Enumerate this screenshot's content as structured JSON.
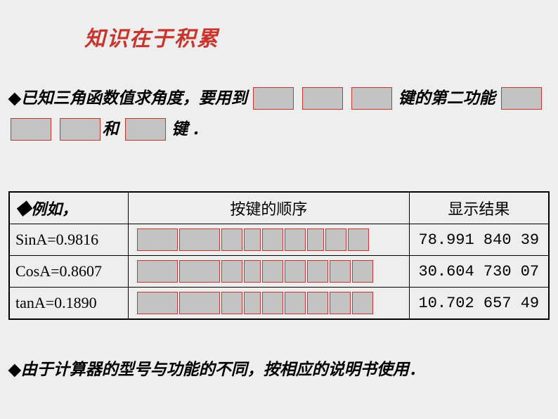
{
  "title": "知识在于积累",
  "para": {
    "lead": "◆",
    "text1": "已知三角函数值求角度，要用到",
    "text2": "键的第二功能",
    "text3": "和",
    "text4": "键 ．"
  },
  "table": {
    "headers": {
      "example": "◆例如，",
      "seq": "按键的顺序",
      "result": "显示结果"
    },
    "rows": [
      {
        "label": "SinA=0.9816",
        "result": "78.991 840 39",
        "wide": 2,
        "narrow": 3,
        "tail": 3
      },
      {
        "label": "CosA=0.8607",
        "result": "30.604 730 07",
        "wide": 2,
        "narrow": 5,
        "tail": 2
      },
      {
        "label": "tanA=0.1890",
        "result": "10.702 657 49",
        "wide": 2,
        "narrow": 4,
        "tail": 2
      }
    ]
  },
  "footer": {
    "lead": "◆",
    "text": "由于计算器的型号与功能的不同，按相应的说明书使用．"
  },
  "colors": {
    "accent": "#c8352e",
    "keybg": "#c3c3c3",
    "pagebg": "#eeeeee",
    "border": "#000000"
  }
}
